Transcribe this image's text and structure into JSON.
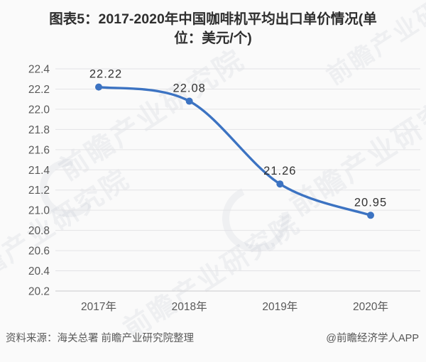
{
  "header": {
    "title_line1": "图表5：2017-2020年中国咖啡机平均出口单价情况(单",
    "title_line2": "位：美元/个)"
  },
  "chart_data": {
    "type": "line",
    "title": "图表5：2017-2020年中国咖啡机平均出口单价情况(单位：美元/个)",
    "xlabel": "",
    "ylabel": "",
    "categories": [
      "2017年",
      "2018年",
      "2019年",
      "2020年"
    ],
    "values": [
      22.22,
      22.08,
      21.26,
      20.95
    ],
    "point_labels": [
      "22.22",
      "22.08",
      "21.26",
      "20.95"
    ],
    "ylim": [
      20.2,
      22.4
    ],
    "ytick_step": 0.2,
    "ytick_labels": [
      "20.2",
      "20.4",
      "20.6",
      "20.8",
      "21.0",
      "21.2",
      "21.4",
      "21.6",
      "21.8",
      "22.0",
      "22.2",
      "22.4"
    ],
    "grid": true,
    "legend": false,
    "line_color": "#3c73c2",
    "point_color": "#3c73c2",
    "label_color": "#333333",
    "axis_text_color": "#595959",
    "grid_color": "#e3e3e6",
    "axis_line_color": "#c9c9cc"
  },
  "footer": {
    "source": "资料来源：海关总署 前瞻产业研究院整理",
    "credit": "@前瞻经济学人APP"
  },
  "watermark": {
    "text": "前瞻产业研究院",
    "color": "#8a93a6"
  }
}
